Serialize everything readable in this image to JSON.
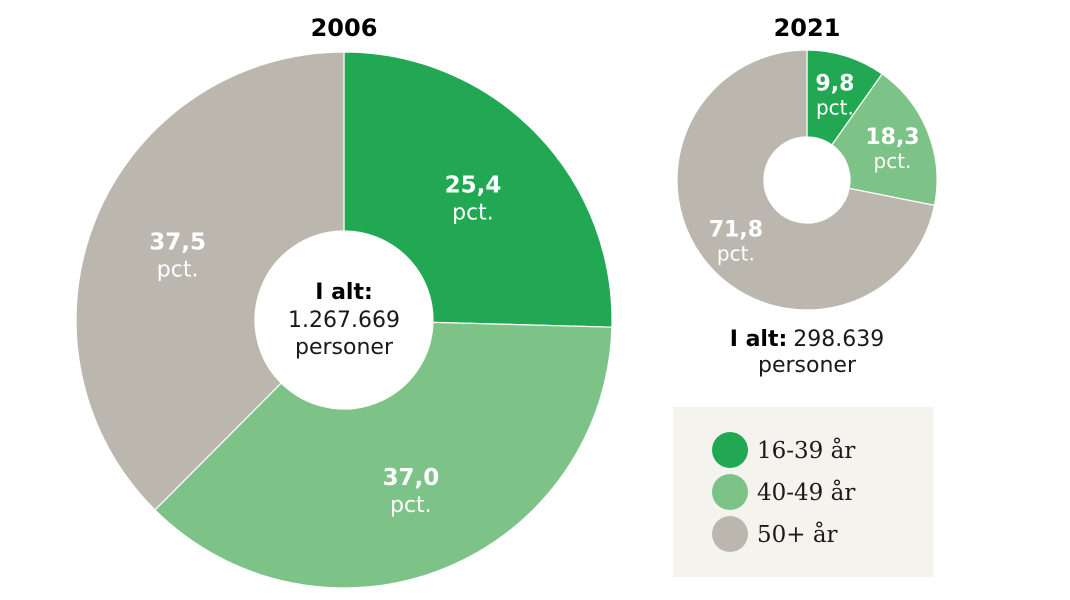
{
  "colors": {
    "16-39": "#22a852",
    "40-49": "#7dc388",
    "50+": "#bbb7ae",
    "legend_bg": "#f4f3ee"
  },
  "chart_data": [
    {
      "type": "pie",
      "title": "2006",
      "total_label": "I alt:",
      "total_value": "1.267.669",
      "total_unit": "personer",
      "slices": [
        {
          "key": "16-39",
          "value": 25.4,
          "label": "25,4",
          "unit": "pct."
        },
        {
          "key": "40-49",
          "value": 37.0,
          "label": "37,0",
          "unit": "pct."
        },
        {
          "key": "50+",
          "value": 37.5,
          "label": "37,5",
          "unit": "pct."
        }
      ]
    },
    {
      "type": "pie",
      "title": "2021",
      "total_label": "I alt:",
      "total_value": "298.639",
      "total_unit": "personer",
      "slices": [
        {
          "key": "16-39",
          "value": 9.8,
          "label": "9,8",
          "unit": "pct."
        },
        {
          "key": "40-49",
          "value": 18.3,
          "label": "18,3",
          "unit": "pct."
        },
        {
          "key": "50+",
          "value": 71.8,
          "label": "71,8",
          "unit": "pct."
        }
      ]
    }
  ],
  "legend": [
    {
      "key": "16-39",
      "label": "16-39 år"
    },
    {
      "key": "40-49",
      "label": "40-49 år"
    },
    {
      "key": "50+",
      "label": "50+ år"
    }
  ]
}
